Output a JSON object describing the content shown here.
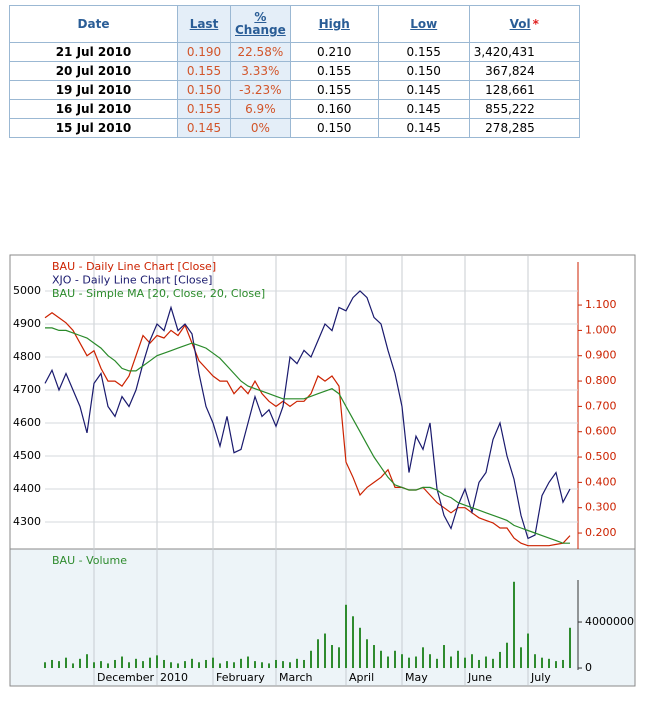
{
  "table": {
    "columns": [
      "Date",
      "Last",
      "%\nChange",
      "High",
      "Low",
      "Vol"
    ],
    "vol_note": "*",
    "rows": [
      [
        "21 Jul 2010",
        "0.190",
        "22.58%",
        "0.210",
        "0.155",
        "3,420,431"
      ],
      [
        "20 Jul 2010",
        "0.155",
        "3.33%",
        "0.155",
        "0.150",
        "367,824"
      ],
      [
        "19 Jul 2010",
        "0.150",
        "-3.23%",
        "0.155",
        "0.145",
        "128,661"
      ],
      [
        "16 Jul 2010",
        "0.155",
        "6.9%",
        "0.160",
        "0.145",
        "855,222"
      ],
      [
        "15 Jul 2010",
        "0.145",
        "0%",
        "0.150",
        "0.145",
        "278,285"
      ]
    ]
  },
  "chart_data": [
    {
      "type": "line",
      "categories": [
        null,
        null,
        null,
        null,
        null,
        null,
        null,
        "December",
        null,
        null,
        null,
        null,
        null,
        null,
        null,
        null,
        "2010",
        null,
        null,
        null,
        null,
        null,
        null,
        null,
        "February",
        null,
        null,
        null,
        null,
        null,
        null,
        null,
        null,
        "March",
        null,
        null,
        null,
        null,
        null,
        null,
        null,
        null,
        null,
        "April",
        null,
        null,
        null,
        null,
        null,
        null,
        null,
        "May",
        null,
        null,
        null,
        null,
        null,
        null,
        null,
        null,
        "June",
        null,
        null,
        null,
        null,
        null,
        null,
        null,
        null,
        "July",
        null,
        null,
        null,
        null,
        null,
        null
      ],
      "series": [
        {
          "name": "BAU - Daily Line Chart [Close]",
          "color": "#cc2200",
          "axis": "y2",
          "values": [
            1.05,
            1.07,
            1.05,
            1.03,
            1.0,
            0.95,
            0.9,
            0.92,
            0.85,
            0.8,
            0.8,
            0.78,
            0.82,
            0.9,
            0.98,
            0.95,
            0.98,
            0.97,
            1.0,
            0.98,
            1.02,
            0.95,
            0.88,
            0.85,
            0.82,
            0.8,
            0.8,
            0.75,
            0.78,
            0.75,
            0.8,
            0.75,
            0.72,
            0.7,
            0.72,
            0.7,
            0.72,
            0.72,
            0.75,
            0.82,
            0.8,
            0.82,
            0.78,
            0.48,
            0.42,
            0.35,
            0.38,
            0.4,
            0.42,
            0.45,
            0.38,
            0.38,
            0.37,
            0.37,
            0.38,
            0.35,
            0.32,
            0.3,
            0.28,
            0.3,
            0.3,
            0.28,
            0.26,
            0.25,
            0.24,
            0.22,
            0.22,
            0.18,
            0.16,
            0.15,
            0.15,
            0.15,
            0.15,
            0.155,
            0.16,
            0.19
          ]
        },
        {
          "name": "XJO - Daily Line Chart [Close]",
          "color": "#1a1a6e",
          "values": [
            4720,
            4760,
            4700,
            4750,
            4700,
            4650,
            4570,
            4720,
            4750,
            4650,
            4620,
            4680,
            4650,
            4700,
            4780,
            4850,
            4900,
            4880,
            4950,
            4880,
            4900,
            4870,
            4750,
            4650,
            4600,
            4530,
            4620,
            4510,
            4520,
            4600,
            4680,
            4620,
            4640,
            4590,
            4650,
            4800,
            4780,
            4820,
            4800,
            4850,
            4900,
            4880,
            4950,
            4940,
            4980,
            5000,
            4980,
            4920,
            4900,
            4820,
            4750,
            4650,
            4450,
            4560,
            4520,
            4600,
            4400,
            4320,
            4280,
            4350,
            4400,
            4330,
            4420,
            4450,
            4550,
            4600,
            4500,
            4430,
            4320,
            4250,
            4260,
            4380,
            4420,
            4450,
            4360,
            4400
          ]
        },
        {
          "name": "BAU - Simple MA [20, Close, 20, Close]",
          "color": "#2a8a2a",
          "axis": "y2",
          "values": [
            1.01,
            1.01,
            1.0,
            1.0,
            0.99,
            0.98,
            0.97,
            0.95,
            0.93,
            0.9,
            0.88,
            0.85,
            0.84,
            0.84,
            0.86,
            0.88,
            0.9,
            0.91,
            0.92,
            0.93,
            0.94,
            0.95,
            0.94,
            0.93,
            0.91,
            0.89,
            0.86,
            0.83,
            0.8,
            0.78,
            0.77,
            0.76,
            0.75,
            0.74,
            0.73,
            0.73,
            0.73,
            0.73,
            0.74,
            0.75,
            0.76,
            0.77,
            0.75,
            0.7,
            0.65,
            0.6,
            0.55,
            0.5,
            0.46,
            0.42,
            0.39,
            0.38,
            0.37,
            0.37,
            0.38,
            0.38,
            0.37,
            0.35,
            0.34,
            0.32,
            0.31,
            0.3,
            0.29,
            0.28,
            0.27,
            0.26,
            0.25,
            0.23,
            0.22,
            0.21,
            0.2,
            0.19,
            0.18,
            0.17,
            0.16,
            0.16
          ]
        }
      ],
      "ylim": [
        4218,
        5088
      ],
      "yticks": [
        4300,
        4400,
        4500,
        4600,
        4700,
        4800,
        4900,
        5000
      ],
      "y2lim": [
        0.137,
        1.27
      ],
      "y2ticks": [
        {
          "value": 0.2,
          "label": "0.200"
        },
        {
          "value": 0.3,
          "label": "0.300"
        },
        {
          "value": 0.4,
          "label": "0.400"
        },
        {
          "value": 0.5,
          "label": "0.500"
        },
        {
          "value": 0.6,
          "label": "0.600"
        },
        {
          "value": 0.7,
          "label": "0.700"
        },
        {
          "value": 0.8,
          "label": "0.800"
        },
        {
          "value": 0.9,
          "label": "0.900"
        },
        {
          "value": 1.0,
          "label": "1.000"
        },
        {
          "value": 1.1,
          "label": "1.100"
        }
      ],
      "y2color": "#cc2200",
      "grid": true
    },
    {
      "type": "bar",
      "title": "BAU - Volume",
      "color": "#2e8b2e",
      "values": [
        500000,
        700000,
        600000,
        900000,
        400000,
        800000,
        1200000,
        500000,
        600000,
        400000,
        700000,
        1000000,
        500000,
        800000,
        600000,
        900000,
        1100000,
        700000,
        500000,
        400000,
        600000,
        800000,
        500000,
        700000,
        900000,
        400000,
        600000,
        500000,
        800000,
        1000000,
        600000,
        500000,
        400000,
        700000,
        600000,
        500000,
        800000,
        700000,
        1500000,
        2500000,
        3000000,
        2000000,
        1800000,
        5500000,
        4500000,
        3500000,
        2500000,
        2000000,
        1500000,
        1000000,
        1500000,
        1200000,
        900000,
        1000000,
        1800000,
        1200000,
        800000,
        2000000,
        1000000,
        1500000,
        900000,
        1200000,
        700000,
        1000000,
        800000,
        1400000,
        2200000,
        7500000,
        1800000,
        3000000,
        1200000,
        900000,
        800000,
        600000,
        700000,
        3500000
      ],
      "ylim": [
        -1390000,
        10090000
      ],
      "yticks": [
        0,
        4000000
      ],
      "grid": true
    }
  ]
}
